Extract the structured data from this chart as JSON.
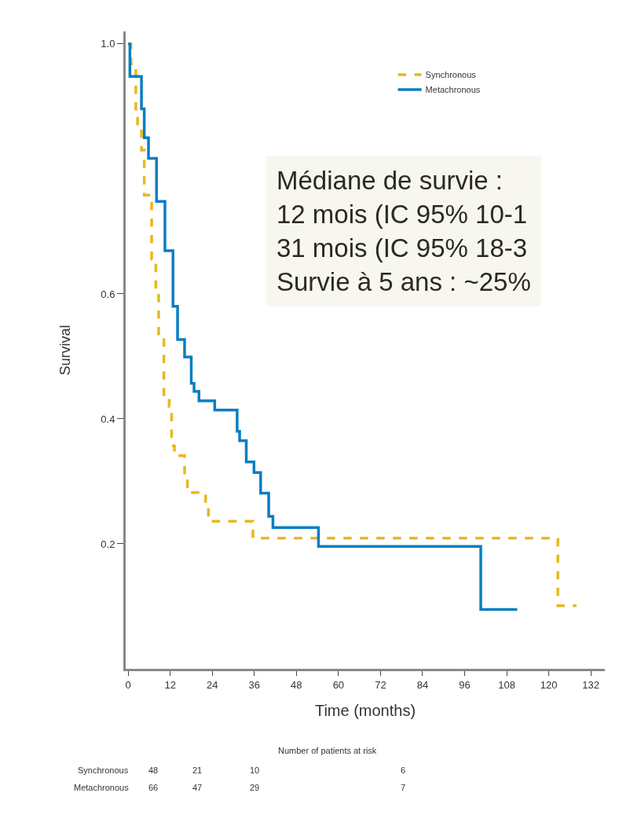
{
  "chart_data": {
    "type": "step",
    "xlabel": "Time (months)",
    "ylabel": "Survival",
    "xlim": [
      -0.7,
      136
    ],
    "xticks": [
      0,
      12,
      24,
      36,
      48,
      60,
      72,
      84,
      96,
      108,
      120,
      132
    ],
    "ylim": [
      0,
      1.02
    ],
    "yticks": [
      {
        "value": 0.2,
        "label": "0.2"
      },
      {
        "value": 0.4,
        "label": "0.4"
      },
      {
        "value": 0.6,
        "label": "0.6"
      },
      {
        "value": 1,
        "label": "1.0"
      }
    ],
    "grid": false,
    "legend": "top right",
    "series": [
      {
        "name": "Synchronous",
        "color": "#e6b91e",
        "line_style": "dashed",
        "x": [
          0,
          0.8,
          2.2,
          2.7,
          3.8,
          4.6,
          6.7,
          7.9,
          8.7,
          10.2,
          11.7,
          12.4,
          13.2,
          16.1,
          16.9,
          22.1,
          22.9,
          35.6,
          122.6,
          127.9
        ],
        "values": [
          1.0,
          0.968,
          0.892,
          0.863,
          0.83,
          0.758,
          0.656,
          0.604,
          0.532,
          0.434,
          0.42,
          0.357,
          0.341,
          0.301,
          0.282,
          0.261,
          0.236,
          0.209,
          0.101,
          0.101
        ]
      },
      {
        "name": "Metachronous",
        "color": "#0a7ec2",
        "line_style": "solid",
        "x": [
          0,
          0.5,
          3.8,
          4.6,
          5.8,
          8.1,
          10.5,
          12.8,
          14.1,
          16.1,
          18,
          18.8,
          20.2,
          24.7,
          31.1,
          31.8,
          33.7,
          35.9,
          37.8,
          40.1,
          41.3,
          54.3,
          100.6,
          111
        ],
        "values": [
          1.0,
          0.948,
          0.896,
          0.85,
          0.817,
          0.748,
          0.669,
          0.58,
          0.527,
          0.499,
          0.457,
          0.444,
          0.429,
          0.414,
          0.38,
          0.365,
          0.331,
          0.314,
          0.281,
          0.244,
          0.226,
          0.196,
          0.095,
          0.095
        ]
      }
    ],
    "annotations": [
      "Médiane de survie :\n12 mois (IC 95% 10-1\n31 mois (IC 95% 18-3\nSurvie à 5 ans : ~25%",
      "Number of patients at risk",
      "Synchronous",
      "48",
      "21",
      "10",
      "6",
      "Metachronous",
      "66",
      "47",
      "29",
      "7"
    ]
  }
}
